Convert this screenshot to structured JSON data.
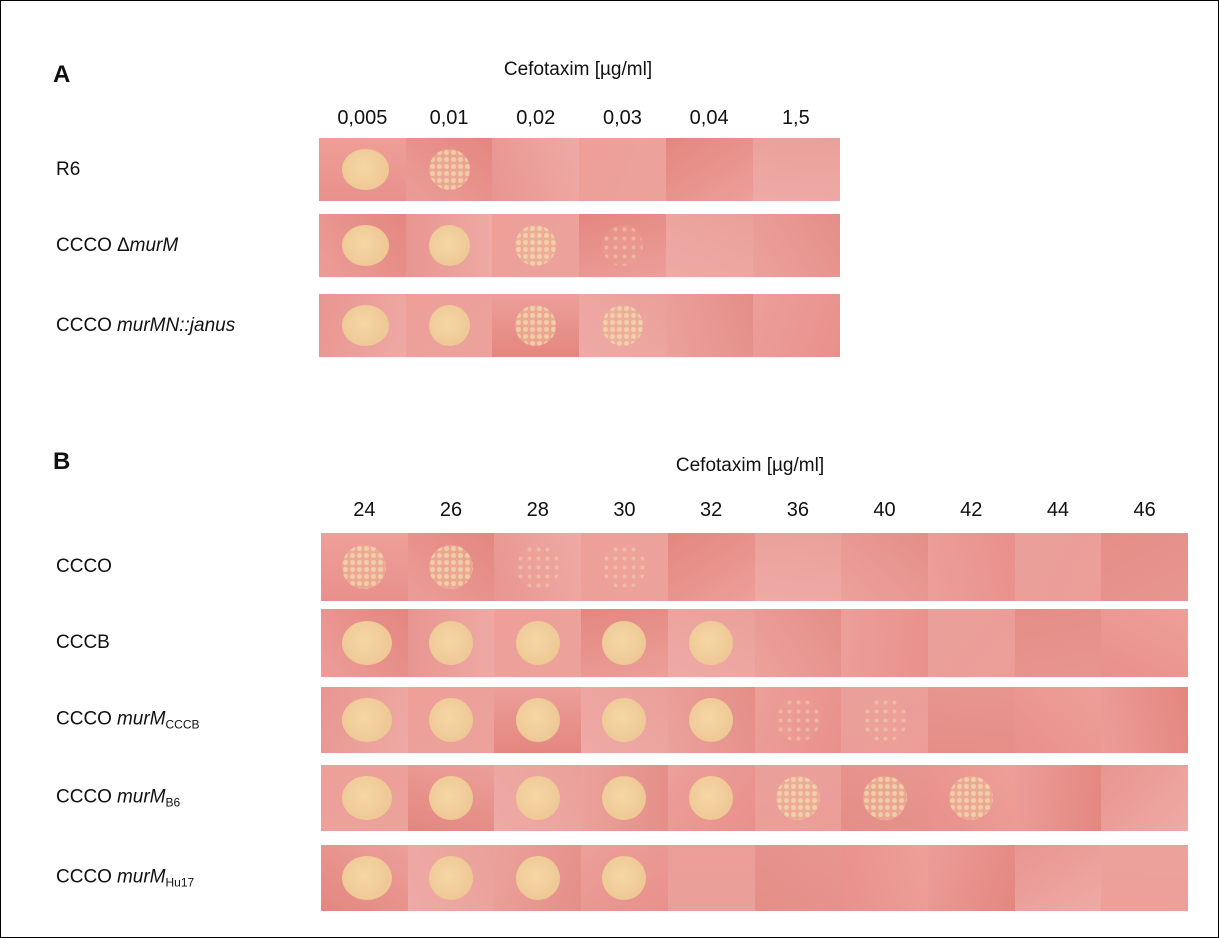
{
  "panels": [
    {
      "label": "A",
      "axis_title": "Cefotaxim [µg/ml]",
      "columns": [
        "0,005",
        "0,01",
        "0,02",
        "0,03",
        "0,04",
        "1,5"
      ],
      "rows": [
        {
          "strain": "R6"
        },
        {
          "strain": "CCCO",
          "mutation": "Δ",
          "gene": "murM"
        },
        {
          "strain": "CCCO",
          "gene": "murMN::janus"
        }
      ]
    },
    {
      "label": "B",
      "axis_title": "Cefotaxim [µg/ml]",
      "columns": [
        "24",
        "26",
        "28",
        "30",
        "32",
        "36",
        "40",
        "42",
        "44",
        "46"
      ],
      "rows": [
        {
          "strain": "CCCO"
        },
        {
          "strain": "CCCB"
        },
        {
          "strain": "CCCO",
          "gene": "murM",
          "subscript": "CCCB"
        },
        {
          "strain": "CCCO",
          "gene": "murM",
          "subscript": "B6"
        },
        {
          "strain": "CCCO",
          "gene": "murM",
          "subscript": "Hu17"
        }
      ]
    }
  ]
}
